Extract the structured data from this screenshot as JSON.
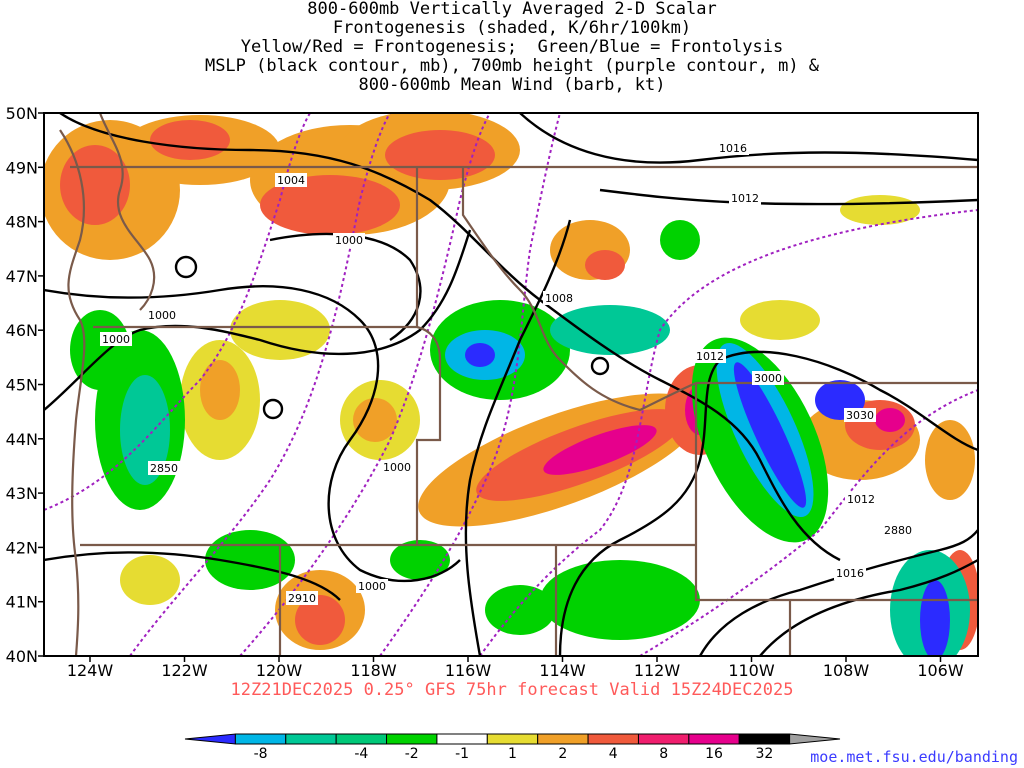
{
  "title_lines": [
    "800-600mb Vertically Averaged 2-D Scalar",
    "Frontogenesis (shaded, K/6hr/100km)",
    "Yellow/Red = Frontogenesis;  Green/Blue = Frontolysis",
    "MSLP (black contour, mb), 700mb height (purple contour, m) &",
    "800-600mb Mean Wind (barb, kt)"
  ],
  "valid_text": "12Z21DEC2025 0.25° GFS 75hr forecast Valid 15Z24DEC2025",
  "credit_text": "moe.met.fsu.edu/banding",
  "lat_labels": [
    "50N",
    "49N",
    "48N",
    "47N",
    "46N",
    "45N",
    "44N",
    "43N",
    "42N",
    "41N",
    "40N"
  ],
  "lon_labels": [
    "124W",
    "122W",
    "120W",
    "118W",
    "116W",
    "114W",
    "112W",
    "110W",
    "108W",
    "106W"
  ],
  "colorbar": {
    "tick_labels": [
      "-8",
      "-4",
      "-2",
      "-1",
      "1",
      "2",
      "4",
      "8",
      "16",
      "32"
    ],
    "colors": [
      "#2b2bff",
      "#00b6e6",
      "#00c896",
      "#00c878",
      "#00d200",
      "#ffffff",
      "#e6dc32",
      "#f0a028",
      "#f05a3c",
      "#f01e6e",
      "#e6008c",
      "#000000",
      "#a0a0a0"
    ]
  },
  "mslp_labels": [
    "1016",
    "1012",
    "1004",
    "1000",
    "1000",
    "1000",
    "1008",
    "1012",
    "1000",
    "1012",
    "1000",
    "1016"
  ],
  "height_labels": [
    "3000",
    "3030",
    "2850",
    "2910",
    "2880"
  ],
  "map_colors": {
    "border": "#7a5a4a",
    "mslp": "#000000",
    "height": "#a020c0"
  }
}
